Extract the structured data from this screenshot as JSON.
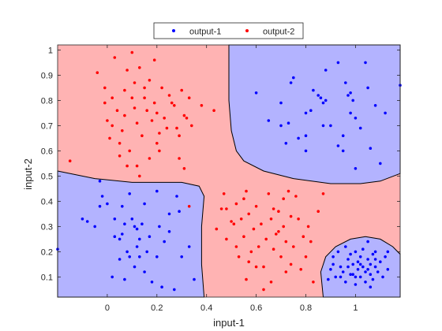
{
  "chart_data": {
    "type": "scatter",
    "title": "",
    "xlabel": "input-1",
    "ylabel": "input-2",
    "xlim": [
      -0.2,
      1.18
    ],
    "ylim": [
      0.02,
      1.02
    ],
    "x_ticks": [
      "0",
      "0.2",
      "0.4",
      "0.6",
      "0.8",
      "1"
    ],
    "x_tick_values": [
      0,
      0.2,
      0.4,
      0.6,
      0.8,
      1.0
    ],
    "y_ticks": [
      "0.1",
      "0.2",
      "0.3",
      "0.4",
      "0.5",
      "0.6",
      "0.7",
      "0.8",
      "0.9",
      "1"
    ],
    "y_tick_values": [
      0.1,
      0.2,
      0.3,
      0.4,
      0.5,
      0.6,
      0.7,
      0.8,
      0.9,
      1.0
    ],
    "grid": false,
    "legend_position": "top-center-outside",
    "background_region_colors": {
      "output-1": "#b3b3ff",
      "output-2": "#ffb3b3"
    },
    "boundary_color": "#000000",
    "decision_regions": [
      {
        "class": "output-1",
        "polygon": [
          [
            0.49,
            1.02
          ],
          [
            1.18,
            1.02
          ],
          [
            1.18,
            0.51
          ],
          [
            1.1,
            0.48
          ],
          [
            1.02,
            0.47
          ],
          [
            0.9,
            0.47
          ],
          [
            0.75,
            0.49
          ],
          [
            0.63,
            0.52
          ],
          [
            0.55,
            0.56
          ],
          [
            0.52,
            0.6
          ],
          [
            0.5,
            0.68
          ],
          [
            0.49,
            0.8
          ]
        ]
      },
      {
        "class": "output-1",
        "polygon": [
          [
            -0.2,
            0.52
          ],
          [
            -0.05,
            0.49
          ],
          [
            0.1,
            0.475
          ],
          [
            0.3,
            0.475
          ],
          [
            0.37,
            0.46
          ],
          [
            0.39,
            0.42
          ],
          [
            0.38,
            0.3
          ],
          [
            0.38,
            0.15
          ],
          [
            0.39,
            0.02
          ],
          [
            -0.2,
            0.02
          ]
        ]
      },
      {
        "class": "output-1",
        "polygon": [
          [
            0.87,
            0.02
          ],
          [
            0.86,
            0.12
          ],
          [
            0.88,
            0.18
          ],
          [
            0.92,
            0.22
          ],
          [
            0.98,
            0.25
          ],
          [
            1.04,
            0.26
          ],
          [
            1.1,
            0.25
          ],
          [
            1.15,
            0.22
          ],
          [
            1.18,
            0.19
          ],
          [
            1.18,
            0.02
          ]
        ]
      }
    ],
    "series": [
      {
        "name": "output-1",
        "color": "#0000ff",
        "points": [
          [
            0.6,
            0.83
          ],
          [
            0.7,
            0.7
          ],
          [
            0.73,
            0.71
          ],
          [
            0.7,
            0.79
          ],
          [
            0.74,
            0.87
          ],
          [
            0.75,
            0.89
          ],
          [
            0.8,
            0.75
          ],
          [
            0.8,
            0.66
          ],
          [
            0.8,
            0.6
          ],
          [
            0.83,
            0.84
          ],
          [
            0.85,
            0.82
          ],
          [
            0.86,
            0.81
          ],
          [
            0.87,
            0.79
          ],
          [
            0.88,
            0.8
          ],
          [
            0.9,
            0.7
          ],
          [
            0.93,
            0.95
          ],
          [
            0.96,
            0.87
          ],
          [
            0.97,
            0.82
          ],
          [
            0.98,
            0.83
          ],
          [
            0.95,
            0.6
          ],
          [
            0.95,
            0.66
          ],
          [
            0.98,
            0.75
          ],
          [
            1.0,
            0.73
          ],
          [
            1.02,
            0.69
          ],
          [
            1.04,
            0.95
          ],
          [
            1.06,
            0.61
          ],
          [
            1.08,
            0.78
          ],
          [
            1.12,
            0.75
          ],
          [
            1.1,
            0.55
          ],
          [
            1.0,
            0.53
          ],
          [
            0.99,
            0.8
          ],
          [
            0.93,
            0.62
          ],
          [
            0.87,
            0.7
          ],
          [
            0.77,
            0.65
          ],
          [
            0.82,
            0.76
          ],
          [
            1.18,
            0.86
          ],
          [
            0.65,
            0.72
          ],
          [
            0.72,
            0.63
          ],
          [
            0.88,
            0.92
          ],
          [
            1.05,
            0.85
          ],
          [
            -0.2,
            0.21
          ],
          [
            -0.1,
            0.33
          ],
          [
            -0.08,
            0.32
          ],
          [
            -0.05,
            0.3
          ],
          [
            -0.03,
            0.48
          ],
          [
            -0.02,
            0.42
          ],
          [
            0.0,
            0.39
          ],
          [
            0.03,
            0.33
          ],
          [
            0.03,
            0.26
          ],
          [
            0.05,
            0.25
          ],
          [
            0.05,
            0.17
          ],
          [
            0.06,
            0.27
          ],
          [
            0.07,
            0.31
          ],
          [
            0.07,
            0.09
          ],
          [
            0.08,
            0.2
          ],
          [
            0.09,
            0.43
          ],
          [
            0.09,
            0.18
          ],
          [
            0.1,
            0.33
          ],
          [
            0.11,
            0.3
          ],
          [
            0.12,
            0.29
          ],
          [
            0.12,
            0.22
          ],
          [
            0.13,
            0.25
          ],
          [
            0.13,
            0.18
          ],
          [
            0.14,
            0.31
          ],
          [
            0.15,
            0.39
          ],
          [
            0.16,
            0.2
          ],
          [
            0.17,
            0.26
          ],
          [
            0.18,
            0.08
          ],
          [
            0.2,
            0.44
          ],
          [
            0.21,
            0.3
          ],
          [
            0.22,
            0.06
          ],
          [
            0.23,
            0.24
          ],
          [
            0.25,
            0.28
          ],
          [
            0.27,
            0.05
          ],
          [
            0.28,
            0.42
          ],
          [
            0.3,
            0.18
          ],
          [
            0.33,
            0.22
          ],
          [
            0.35,
            0.09
          ],
          [
            0.02,
            0.1
          ],
          [
            0.11,
            0.14
          ],
          [
            0.2,
            0.18
          ],
          [
            0.29,
            0.36
          ],
          [
            -0.03,
            0.38
          ],
          [
            0.06,
            0.38
          ],
          [
            0.15,
            0.12
          ],
          [
            0.25,
            0.35
          ],
          [
            0.89,
            0.09
          ],
          [
            0.9,
            0.13
          ],
          [
            0.91,
            0.15
          ],
          [
            0.91,
            0.18
          ],
          [
            0.92,
            0.1
          ],
          [
            0.93,
            0.2
          ],
          [
            0.94,
            0.14
          ],
          [
            0.95,
            0.12
          ],
          [
            0.96,
            0.08
          ],
          [
            0.96,
            0.22
          ],
          [
            0.97,
            0.17
          ],
          [
            0.98,
            0.19
          ],
          [
            0.98,
            0.11
          ],
          [
            0.99,
            0.15
          ],
          [
            1.0,
            0.07
          ],
          [
            1.0,
            0.2
          ],
          [
            1.01,
            0.13
          ],
          [
            1.01,
            0.16
          ],
          [
            1.02,
            0.1
          ],
          [
            1.02,
            0.18
          ],
          [
            1.03,
            0.14
          ],
          [
            1.03,
            0.21
          ],
          [
            1.04,
            0.12
          ],
          [
            1.04,
            0.08
          ],
          [
            1.05,
            0.17
          ],
          [
            1.05,
            0.24
          ],
          [
            1.06,
            0.11
          ],
          [
            1.06,
            0.15
          ],
          [
            1.07,
            0.19
          ],
          [
            1.07,
            0.09
          ],
          [
            1.08,
            0.14
          ],
          [
            1.08,
            0.2
          ],
          [
            1.09,
            0.12
          ],
          [
            1.1,
            0.16
          ],
          [
            1.11,
            0.1
          ],
          [
            1.12,
            0.18
          ],
          [
            1.13,
            0.13
          ],
          [
            1.13,
            0.2
          ],
          [
            0.94,
            0.1
          ],
          [
            0.99,
            0.11
          ],
          [
            1.02,
            0.15
          ],
          [
            1.05,
            0.13
          ],
          [
            1.08,
            0.17
          ],
          [
            1.0,
            0.1
          ],
          [
            1.06,
            0.06
          ],
          [
            0.97,
            0.14
          ]
        ]
      },
      {
        "name": "output-2",
        "color": "#ff0000",
        "points": [
          [
            -0.15,
            0.56
          ],
          [
            -0.04,
            0.91
          ],
          [
            -0.01,
            0.85
          ],
          [
            -0.01,
            0.79
          ],
          [
            0.0,
            0.72
          ],
          [
            0.01,
            0.65
          ],
          [
            0.02,
            0.81
          ],
          [
            0.02,
            0.7
          ],
          [
            0.03,
            0.97
          ],
          [
            0.04,
            0.76
          ],
          [
            0.05,
            0.58
          ],
          [
            0.06,
            0.68
          ],
          [
            0.07,
            0.74
          ],
          [
            0.07,
            0.84
          ],
          [
            0.08,
            0.92
          ],
          [
            0.09,
            0.6
          ],
          [
            0.1,
            0.99
          ],
          [
            0.1,
            0.81
          ],
          [
            0.11,
            0.77
          ],
          [
            0.11,
            0.87
          ],
          [
            0.12,
            0.71
          ],
          [
            0.13,
            0.93
          ],
          [
            0.14,
            0.66
          ],
          [
            0.15,
            0.85
          ],
          [
            0.16,
            0.76
          ],
          [
            0.17,
            0.88
          ],
          [
            0.18,
            0.72
          ],
          [
            0.19,
            0.96
          ],
          [
            0.2,
            0.63
          ],
          [
            0.2,
            0.75
          ],
          [
            0.21,
            0.67
          ],
          [
            0.22,
            0.85
          ],
          [
            0.23,
            0.73
          ],
          [
            0.24,
            0.69
          ],
          [
            0.25,
            0.82
          ],
          [
            0.26,
            0.79
          ],
          [
            0.27,
            0.78
          ],
          [
            0.28,
            0.69
          ],
          [
            0.29,
            0.66
          ],
          [
            0.3,
            0.84
          ],
          [
            0.31,
            0.74
          ],
          [
            0.32,
            0.73
          ],
          [
            0.33,
            0.81
          ],
          [
            0.34,
            0.7
          ],
          [
            0.38,
            0.78
          ],
          [
            0.43,
            0.76
          ],
          [
            0.15,
            0.81
          ],
          [
            0.08,
            0.54
          ],
          [
            0.12,
            0.54
          ],
          [
            0.21,
            0.6
          ],
          [
            0.17,
            0.57
          ],
          [
            0.29,
            0.57
          ],
          [
            0.31,
            0.53
          ],
          [
            0.13,
            0.5
          ],
          [
            0.05,
            0.63
          ],
          [
            0.19,
            0.79
          ],
          [
            0.33,
            0.38
          ],
          [
            0.44,
            0.29
          ],
          [
            0.46,
            0.37
          ],
          [
            0.47,
            0.43
          ],
          [
            0.48,
            0.25
          ],
          [
            0.5,
            0.32
          ],
          [
            0.51,
            0.31
          ],
          [
            0.52,
            0.39
          ],
          [
            0.53,
            0.18
          ],
          [
            0.55,
            0.26
          ],
          [
            0.55,
            0.41
          ],
          [
            0.56,
            0.44
          ],
          [
            0.57,
            0.35
          ],
          [
            0.58,
            0.2
          ],
          [
            0.59,
            0.29
          ],
          [
            0.6,
            0.38
          ],
          [
            0.61,
            0.22
          ],
          [
            0.62,
            0.31
          ],
          [
            0.63,
            0.14
          ],
          [
            0.64,
            0.25
          ],
          [
            0.65,
            0.43
          ],
          [
            0.66,
            0.33
          ],
          [
            0.67,
            0.21
          ],
          [
            0.68,
            0.27
          ],
          [
            0.69,
            0.36
          ],
          [
            0.7,
            0.18
          ],
          [
            0.71,
            0.3
          ],
          [
            0.72,
            0.24
          ],
          [
            0.73,
            0.44
          ],
          [
            0.74,
            0.34
          ],
          [
            0.75,
            0.22
          ],
          [
            0.76,
            0.42
          ],
          [
            0.77,
            0.33
          ],
          [
            0.78,
            0.13
          ],
          [
            0.79,
            0.26
          ],
          [
            0.8,
            0.18
          ],
          [
            0.81,
            0.3
          ],
          [
            0.82,
            0.24
          ],
          [
            0.83,
            0.08
          ],
          [
            0.85,
            0.36
          ],
          [
            0.87,
            0.43
          ],
          [
            0.6,
            0.14
          ],
          [
            0.56,
            0.09
          ],
          [
            0.66,
            0.08
          ],
          [
            0.72,
            0.12
          ],
          [
            0.63,
            0.05
          ],
          [
            0.52,
            0.22
          ],
          [
            0.69,
            0.28
          ],
          [
            0.57,
            0.16
          ],
          [
            0.74,
            0.15
          ],
          [
            0.48,
            0.37
          ],
          [
            0.54,
            0.33
          ],
          [
            0.67,
            0.37
          ],
          [
            0.71,
            0.41
          ]
        ]
      }
    ]
  },
  "legend": {
    "entries": [
      {
        "label": "output-1",
        "color": "#0000ff"
      },
      {
        "label": "output-2",
        "color": "#ff0000"
      }
    ]
  }
}
